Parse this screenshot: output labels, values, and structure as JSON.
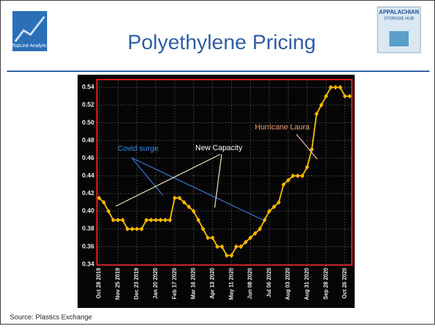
{
  "header": {
    "title": "Polyethylene Pricing",
    "left_logo": "TopLine Analytics",
    "right_logo": [
      "APPALACHIAN",
      "STORAGE HUB"
    ]
  },
  "footer": {
    "source": "Source: Plastics Exchange"
  },
  "chart_data": {
    "type": "line",
    "color": "#f5b800",
    "categories": [
      "Oct 28 2019",
      null,
      null,
      null,
      "Nov 25 2019",
      null,
      null,
      null,
      "Dec 23 2019",
      null,
      null,
      null,
      "Jan 20 2020",
      null,
      null,
      null,
      "Feb 17 2020",
      null,
      null,
      null,
      "Mar 16 2020",
      null,
      null,
      null,
      "Apr 13 2020",
      null,
      null,
      null,
      "May 11 2020",
      null,
      null,
      null,
      "Jun 08 2020",
      null,
      null,
      null,
      "Jul 06 2020",
      null,
      null,
      null,
      "Aug 03 2020",
      null,
      null,
      null,
      "Aug 31 2020",
      null,
      null,
      null,
      "Sep 28 2020",
      null,
      null,
      null,
      "Oct 26 2020",
      null
    ],
    "values": [
      0.415,
      0.41,
      0.4,
      0.39,
      0.39,
      0.39,
      0.38,
      0.38,
      0.38,
      0.38,
      0.39,
      0.39,
      0.39,
      0.39,
      0.39,
      0.39,
      0.415,
      0.415,
      0.41,
      0.405,
      0.4,
      0.39,
      0.38,
      0.37,
      0.37,
      0.36,
      0.36,
      0.35,
      0.35,
      0.36,
      0.36,
      0.365,
      0.37,
      0.375,
      0.38,
      0.39,
      0.4,
      0.405,
      0.41,
      0.43,
      0.435,
      0.44,
      0.44,
      0.44,
      0.45,
      0.47,
      0.51,
      0.52,
      0.53,
      0.54,
      0.54,
      0.54,
      0.53,
      0.53
    ],
    "ylim": [
      0.34,
      0.548
    ],
    "yticks": [
      0.34,
      0.36,
      0.38,
      {
        "value": 0.4,
        "label": "0.40"
      },
      0.42,
      0.44,
      0.46,
      0.48,
      {
        "value": 0.5,
        "label": "0.50"
      },
      0.52,
      0.54
    ],
    "grid": true,
    "annotations": [
      "Covid surge",
      "New Capacity",
      "Hurricane Laura"
    ]
  }
}
